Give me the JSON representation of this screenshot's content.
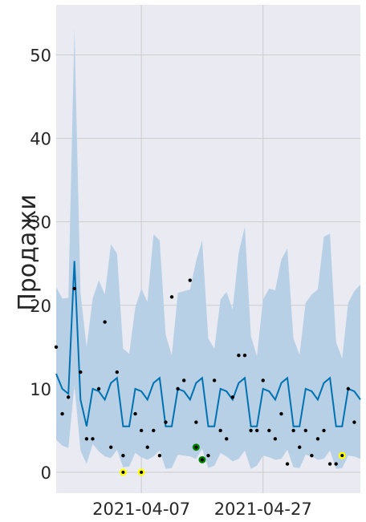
{
  "chart_data": {
    "type": "line",
    "title": "",
    "xlabel": "",
    "ylabel": "Продажи",
    "x_start": "2021-03-24",
    "x_end": "2021-05-13",
    "ylim": [
      -2.5,
      56
    ],
    "grid": true,
    "x_ticks": [
      {
        "date": "2021-04-07",
        "label": "2021-04-07"
      },
      {
        "date": "2021-04-27",
        "label": "2021-04-27"
      }
    ],
    "y_ticks": [
      {
        "value": 0,
        "label": "0"
      },
      {
        "value": 10,
        "label": "10"
      },
      {
        "value": 20,
        "label": "20"
      },
      {
        "value": 30,
        "label": "30"
      },
      {
        "value": 40,
        "label": "40"
      },
      {
        "value": 50,
        "label": "50"
      }
    ],
    "colors": {
      "background": "#eaeaf2",
      "grid": "#cccccc",
      "forecast_line": "#0072b2",
      "interval_band": "#b8d0e6",
      "observed_points": "#000000",
      "low_anomaly": "#ffff00",
      "high_anomaly": "#008000"
    },
    "series": [
      {
        "kind": "forecast",
        "values": [
          [
            "2021-03-24",
            11.8
          ],
          [
            "2021-03-25",
            10.0
          ],
          [
            "2021-03-26",
            9.4
          ],
          [
            "2021-03-27",
            25.3
          ],
          [
            "2021-03-28",
            8.7
          ],
          [
            "2021-03-29",
            5.5
          ],
          [
            "2021-03-30",
            10.0
          ],
          [
            "2021-03-31",
            9.7
          ],
          [
            "2021-04-01",
            8.7
          ],
          [
            "2021-04-02",
            10.7
          ],
          [
            "2021-04-03",
            11.3
          ],
          [
            "2021-04-04",
            5.5
          ],
          [
            "2021-04-05",
            5.5
          ],
          [
            "2021-04-06",
            10.0
          ],
          [
            "2021-04-07",
            9.7
          ],
          [
            "2021-04-08",
            8.7
          ],
          [
            "2021-04-09",
            10.7
          ],
          [
            "2021-04-10",
            11.3
          ],
          [
            "2021-04-11",
            5.5
          ],
          [
            "2021-04-12",
            5.5
          ],
          [
            "2021-04-13",
            10.0
          ],
          [
            "2021-04-14",
            9.7
          ],
          [
            "2021-04-15",
            8.7
          ],
          [
            "2021-04-16",
            10.7
          ],
          [
            "2021-04-17",
            11.3
          ],
          [
            "2021-04-18",
            5.5
          ],
          [
            "2021-04-19",
            5.5
          ],
          [
            "2021-04-20",
            10.0
          ],
          [
            "2021-04-21",
            9.7
          ],
          [
            "2021-04-22",
            8.7
          ],
          [
            "2021-04-23",
            10.7
          ],
          [
            "2021-04-24",
            11.3
          ],
          [
            "2021-04-25",
            5.5
          ],
          [
            "2021-04-26",
            5.5
          ],
          [
            "2021-04-27",
            10.0
          ],
          [
            "2021-04-28",
            9.7
          ],
          [
            "2021-04-29",
            8.7
          ],
          [
            "2021-04-30",
            10.7
          ],
          [
            "2021-05-01",
            11.3
          ],
          [
            "2021-05-02",
            5.5
          ],
          [
            "2021-05-03",
            5.5
          ],
          [
            "2021-05-04",
            10.0
          ],
          [
            "2021-05-05",
            9.7
          ],
          [
            "2021-05-06",
            8.7
          ],
          [
            "2021-05-07",
            10.7
          ],
          [
            "2021-05-08",
            11.3
          ],
          [
            "2021-05-09",
            5.5
          ],
          [
            "2021-05-10",
            5.5
          ],
          [
            "2021-05-11",
            10.0
          ],
          [
            "2021-05-12",
            9.7
          ],
          [
            "2021-05-13",
            8.7
          ]
        ]
      },
      {
        "kind": "interval",
        "upper": [
          22.2,
          20.8,
          20.9,
          53.1,
          21.5,
          15.0,
          20.8,
          23.0,
          21.3,
          27.3,
          26.2,
          14.8,
          14.2,
          19.7,
          22.0,
          20.4,
          28.5,
          27.8,
          16.5,
          14.0,
          21.5,
          21.7,
          21.9,
          25.3,
          27.8,
          16.0,
          14.8,
          20.7,
          21.6,
          19.5,
          26.3,
          29.4,
          16.3,
          13.9,
          20.7,
          22.0,
          21.8,
          25.5,
          26.8,
          16.0,
          14.1,
          20.3,
          21.3,
          21.9,
          28.2,
          28.6,
          15.6,
          13.6,
          20.3,
          21.7,
          22.5
        ],
        "lower": [
          3.9,
          3.2,
          2.9,
          10.4,
          2.6,
          1.0,
          3.4,
          2.5,
          1.9,
          1.7,
          2.7,
          0.6,
          0.7,
          2.3,
          1.8,
          1.5,
          1.9,
          2.6,
          0.4,
          0.5,
          2.1,
          2.0,
          1.9,
          1.6,
          2.8,
          0.5,
          0.8,
          2.3,
          1.9,
          1.3,
          1.6,
          2.6,
          0.4,
          0.8,
          2.0,
          1.8,
          1.5,
          1.6,
          2.7,
          0.6,
          0.5,
          2.1,
          1.9,
          1.5,
          1.6,
          2.6,
          0.4,
          0.5,
          2.0,
          1.9,
          1.6
        ]
      },
      {
        "kind": "observed",
        "points": [
          [
            "2021-03-24",
            15
          ],
          [
            "2021-03-25",
            7
          ],
          [
            "2021-03-26",
            9
          ],
          [
            "2021-03-27",
            22
          ],
          [
            "2021-03-28",
            12
          ],
          [
            "2021-03-29",
            4
          ],
          [
            "2021-03-30",
            4
          ],
          [
            "2021-03-31",
            10
          ],
          [
            "2021-04-01",
            18
          ],
          [
            "2021-04-02",
            3
          ],
          [
            "2021-04-03",
            12
          ],
          [
            "2021-04-04",
            2
          ],
          [
            "2021-04-06",
            7
          ],
          [
            "2021-04-07",
            5
          ],
          [
            "2021-04-08",
            3
          ],
          [
            "2021-04-09",
            5
          ],
          [
            "2021-04-10",
            2
          ],
          [
            "2021-04-11",
            6
          ],
          [
            "2021-04-12",
            21
          ],
          [
            "2021-04-13",
            10
          ],
          [
            "2021-04-14",
            11
          ],
          [
            "2021-04-15",
            23
          ],
          [
            "2021-04-16",
            6
          ],
          [
            "2021-04-18",
            2
          ],
          [
            "2021-04-19",
            11
          ],
          [
            "2021-04-20",
            5
          ],
          [
            "2021-04-21",
            4
          ],
          [
            "2021-04-22",
            9
          ],
          [
            "2021-04-23",
            14
          ],
          [
            "2021-04-24",
            14
          ],
          [
            "2021-04-25",
            5
          ],
          [
            "2021-04-26",
            5
          ],
          [
            "2021-04-27",
            11
          ],
          [
            "2021-04-28",
            5
          ],
          [
            "2021-04-29",
            4
          ],
          [
            "2021-04-30",
            7
          ],
          [
            "2021-05-01",
            1
          ],
          [
            "2021-05-02",
            5
          ],
          [
            "2021-05-03",
            3
          ],
          [
            "2021-05-04",
            5
          ],
          [
            "2021-05-05",
            2
          ],
          [
            "2021-05-06",
            4
          ],
          [
            "2021-05-07",
            5
          ],
          [
            "2021-05-08",
            1
          ],
          [
            "2021-05-09",
            1
          ],
          [
            "2021-05-11",
            10
          ],
          [
            "2021-05-12",
            6
          ]
        ]
      },
      {
        "kind": "anomaly_low",
        "points": [
          [
            "2021-04-04",
            0
          ],
          [
            "2021-04-07",
            0
          ],
          [
            "2021-05-10",
            2
          ]
        ]
      },
      {
        "kind": "anomaly_high",
        "points": [
          [
            "2021-04-16",
            3
          ],
          [
            "2021-04-17",
            1.5
          ]
        ]
      }
    ]
  }
}
